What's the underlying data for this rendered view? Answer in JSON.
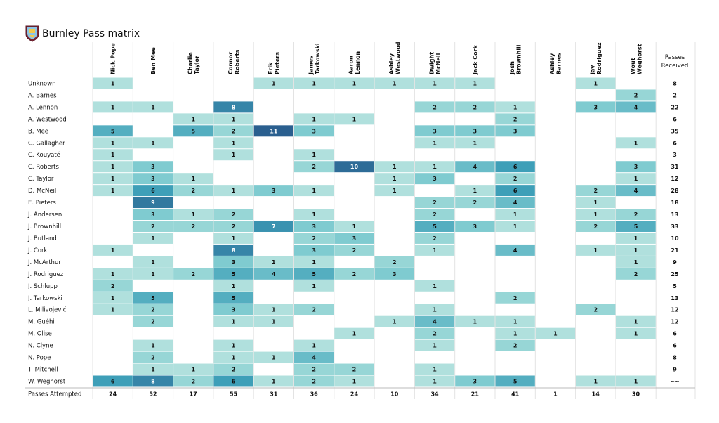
{
  "header": {
    "title": "Burnley Pass matrix",
    "crest_icon": "burnley-crest-icon"
  },
  "chart_data": {
    "type": "heatmap",
    "title": "Burnley Pass matrix",
    "colorscale": [
      "#ffffff",
      "#c8ebe3",
      "#7fcbd0",
      "#3e9fb8",
      "#2a5f8f"
    ],
    "columns": [
      "Nick Pope",
      "Ben Mee",
      "Charlie Taylor",
      "Connor Roberts",
      "Erik Pieters",
      "James Tarkowski",
      "Aaron Lennon",
      "Ashley Westwood",
      "Dwight McNeil",
      "Jack Cork",
      "Josh Brownhill",
      "Ashley Barnes",
      "Jay Rodriguez",
      "Wout Weghorst"
    ],
    "column_labels": [
      [
        "Nick Pope"
      ],
      [
        "Ben Mee"
      ],
      [
        "Charlie",
        "Taylor"
      ],
      [
        "Connor",
        "Roberts"
      ],
      [
        "Erik",
        "Pieters"
      ],
      [
        "James",
        "Tarkowski"
      ],
      [
        "Aaron",
        "Lennon"
      ],
      [
        "Ashley",
        "Westwood"
      ],
      [
        "Dwight",
        "McNeil"
      ],
      [
        "Jack Cork"
      ],
      [
        "Josh",
        "Brownhill"
      ],
      [
        "Ashley",
        "Barnes"
      ],
      [
        "Jay",
        "Rodriguez"
      ],
      [
        "Wout",
        "Weghorst"
      ]
    ],
    "totals_column_label": [
      "Passes",
      "Received"
    ],
    "totals_row_label": "Passes Attempted",
    "rows": [
      {
        "name": "Unknown",
        "values": [
          1,
          0,
          0,
          0,
          1,
          1,
          1,
          1,
          1,
          1,
          0,
          0,
          1,
          0
        ],
        "total": "8"
      },
      {
        "name": "A. Barnes",
        "values": [
          0,
          0,
          0,
          0,
          0,
          0,
          0,
          0,
          0,
          0,
          0,
          0,
          0,
          2
        ],
        "total": "2"
      },
      {
        "name": "A. Lennon",
        "values": [
          1,
          1,
          0,
          8,
          0,
          0,
          0,
          0,
          2,
          2,
          1,
          0,
          3,
          4
        ],
        "total": "22"
      },
      {
        "name": "A. Westwood",
        "values": [
          0,
          0,
          1,
          1,
          0,
          1,
          1,
          0,
          0,
          0,
          2,
          0,
          0,
          0
        ],
        "total": "6"
      },
      {
        "name": "B. Mee",
        "values": [
          5,
          0,
          5,
          2,
          11,
          3,
          0,
          0,
          3,
          3,
          3,
          0,
          0,
          0
        ],
        "total": "35"
      },
      {
        "name": "C. Gallagher",
        "values": [
          1,
          1,
          0,
          1,
          0,
          0,
          0,
          0,
          1,
          1,
          0,
          0,
          0,
          1
        ],
        "total": "6"
      },
      {
        "name": "C. Kouyaté",
        "values": [
          1,
          0,
          0,
          1,
          0,
          1,
          0,
          0,
          0,
          0,
          0,
          0,
          0,
          0
        ],
        "total": "3"
      },
      {
        "name": "C. Roberts",
        "values": [
          1,
          3,
          0,
          0,
          0,
          2,
          10,
          1,
          1,
          4,
          6,
          0,
          0,
          3
        ],
        "total": "31"
      },
      {
        "name": "C. Taylor",
        "values": [
          1,
          3,
          1,
          0,
          0,
          0,
          0,
          1,
          3,
          0,
          2,
          0,
          0,
          1
        ],
        "total": "12"
      },
      {
        "name": "D. McNeil",
        "values": [
          1,
          6,
          2,
          1,
          3,
          1,
          0,
          1,
          0,
          1,
          6,
          0,
          2,
          4
        ],
        "total": "28"
      },
      {
        "name": "E. Pieters",
        "values": [
          0,
          9,
          0,
          0,
          0,
          0,
          0,
          0,
          2,
          2,
          4,
          0,
          1,
          0
        ],
        "total": "18"
      },
      {
        "name": "J. Andersen",
        "values": [
          0,
          3,
          1,
          2,
          0,
          1,
          0,
          0,
          2,
          0,
          1,
          0,
          1,
          2
        ],
        "total": "13"
      },
      {
        "name": "J. Brownhill",
        "values": [
          0,
          2,
          2,
          2,
          7,
          3,
          1,
          0,
          5,
          3,
          1,
          0,
          2,
          5
        ],
        "total": "33"
      },
      {
        "name": "J. Butland",
        "values": [
          0,
          1,
          0,
          1,
          0,
          2,
          3,
          0,
          2,
          0,
          0,
          0,
          0,
          1
        ],
        "total": "10"
      },
      {
        "name": "J. Cork",
        "values": [
          1,
          0,
          0,
          8,
          0,
          3,
          2,
          0,
          1,
          0,
          4,
          0,
          1,
          1
        ],
        "total": "21"
      },
      {
        "name": "J. McArthur",
        "values": [
          0,
          1,
          0,
          3,
          1,
          1,
          0,
          2,
          0,
          0,
          0,
          0,
          0,
          1
        ],
        "total": "9"
      },
      {
        "name": "J. Rodriguez",
        "values": [
          1,
          1,
          2,
          5,
          4,
          5,
          2,
          3,
          0,
          0,
          0,
          0,
          0,
          2
        ],
        "total": "25"
      },
      {
        "name": "J. Schlupp",
        "values": [
          2,
          0,
          0,
          1,
          0,
          1,
          0,
          0,
          1,
          0,
          0,
          0,
          0,
          0
        ],
        "total": "5"
      },
      {
        "name": "J. Tarkowski",
        "values": [
          1,
          5,
          0,
          5,
          0,
          0,
          0,
          0,
          0,
          0,
          2,
          0,
          0,
          0
        ],
        "total": "13"
      },
      {
        "name": "L. Milivojević",
        "values": [
          1,
          2,
          0,
          3,
          1,
          2,
          0,
          0,
          1,
          0,
          0,
          0,
          2,
          0
        ],
        "total": "12"
      },
      {
        "name": "M. Guéhi",
        "values": [
          0,
          2,
          0,
          1,
          1,
          0,
          0,
          1,
          4,
          1,
          1,
          0,
          0,
          1
        ],
        "total": "12"
      },
      {
        "name": "M. Olise",
        "values": [
          0,
          0,
          0,
          0,
          0,
          0,
          1,
          0,
          2,
          0,
          1,
          1,
          0,
          1
        ],
        "total": "6"
      },
      {
        "name": "N. Clyne",
        "values": [
          0,
          1,
          0,
          1,
          0,
          1,
          0,
          0,
          1,
          0,
          2,
          0,
          0,
          0
        ],
        "total": "6"
      },
      {
        "name": "N. Pope",
        "values": [
          0,
          2,
          0,
          1,
          1,
          4,
          0,
          0,
          0,
          0,
          0,
          0,
          0,
          0
        ],
        "total": "8"
      },
      {
        "name": "T. Mitchell",
        "values": [
          0,
          1,
          1,
          2,
          0,
          2,
          2,
          0,
          1,
          0,
          0,
          0,
          0,
          0
        ],
        "total": "9"
      },
      {
        "name": "W. Weghorst",
        "values": [
          6,
          8,
          2,
          6,
          1,
          2,
          1,
          0,
          1,
          3,
          5,
          0,
          1,
          1
        ],
        "total": "~~"
      }
    ],
    "passes_attempted": [
      24,
      52,
      17,
      55,
      31,
      36,
      24,
      10,
      34,
      21,
      41,
      1,
      14,
      30
    ]
  }
}
